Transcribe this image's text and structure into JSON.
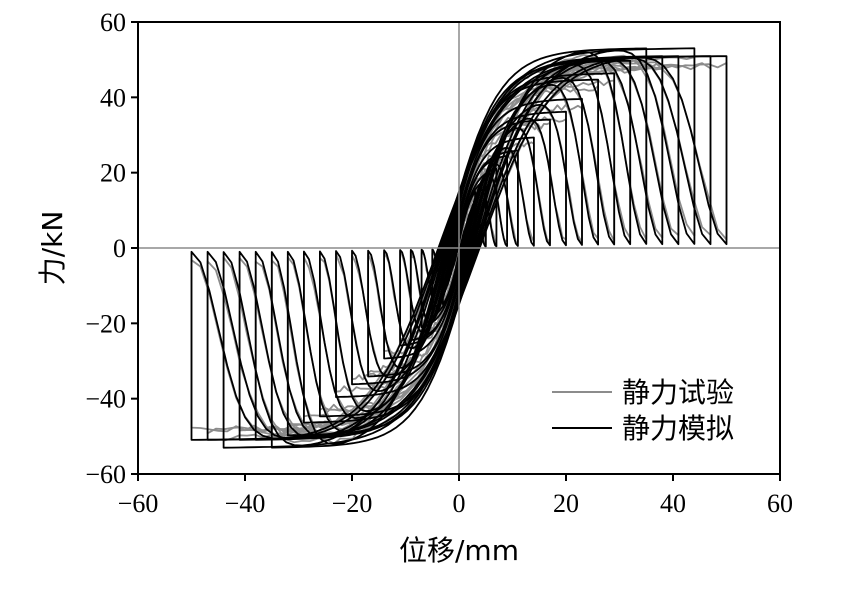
{
  "chart_data": {
    "type": "line",
    "title": "",
    "xlabel": "位移/mm",
    "ylabel": "力/kN",
    "xlim": [
      -60,
      60
    ],
    "ylim": [
      -60,
      60
    ],
    "x_ticks": [
      -60,
      -40,
      -20,
      0,
      20,
      40,
      60
    ],
    "y_ticks": [
      -60,
      -40,
      -20,
      0,
      20,
      40,
      60
    ],
    "x_tick_labels": [
      "−60",
      "−40",
      "−20",
      "0",
      "20",
      "40",
      "60"
    ],
    "y_tick_labels": [
      "−60",
      "−40",
      "−20",
      "0",
      "20",
      "40",
      "60"
    ],
    "grid": false,
    "zero_lines": true,
    "legend_position": "bottom-right",
    "series": [
      {
        "name": "静力试验",
        "color": "#8c8c8c",
        "amplitudes": [
          3,
          5,
          7,
          9,
          11,
          14,
          17,
          20,
          23,
          26,
          29,
          32,
          35,
          38,
          41,
          44,
          47,
          50
        ],
        "loops": [
          {
            "x": [
              -50,
              -48,
              -44,
              -20,
              0,
              10,
              30,
              44,
              48,
              50,
              48,
              44,
              20,
              0,
              -10,
              -30,
              -44,
              -48,
              -50
            ],
            "y": [
              -50,
              -45,
              -40,
              -18,
              -8,
              10,
              25,
              42,
              46,
              45,
              43,
              40,
              18,
              8,
              -10,
              -25,
              -42,
              -50,
              -50
            ]
          }
        ]
      },
      {
        "name": "静力模拟",
        "color": "#000000",
        "amplitudes": [
          3,
          5,
          7,
          9,
          11,
          14,
          17,
          20,
          23,
          26,
          29,
          32,
          35,
          38,
          41,
          44,
          47,
          50
        ],
        "loops": [
          {
            "x": [
              -50,
              -48,
              -45,
              -20,
              0,
              10,
              30,
              45,
              48,
              50,
              48,
              45,
              20,
              0,
              -10,
              -30,
              -45,
              -48,
              -50
            ],
            "y": [
              -43,
              -30,
              -15,
              -5,
              8,
              25,
              40,
              50,
              48,
              42,
              30,
              15,
              5,
              -8,
              -25,
              -40,
              -50,
              -48,
              -43
            ]
          }
        ]
      }
    ]
  }
}
